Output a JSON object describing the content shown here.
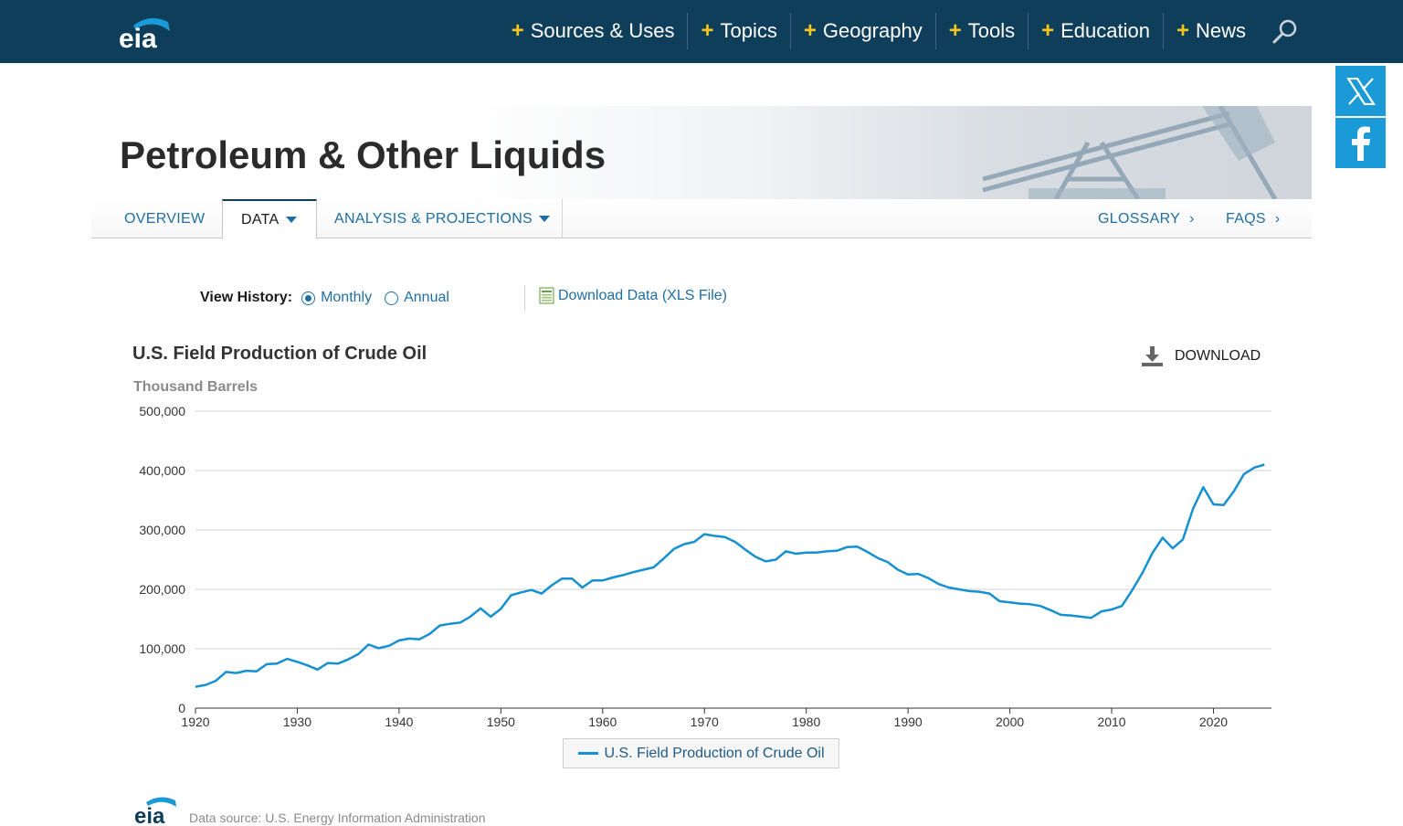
{
  "header": {
    "logo_text": "eia",
    "nav": [
      {
        "label": "Sources & Uses"
      },
      {
        "label": "Topics"
      },
      {
        "label": "Geography"
      },
      {
        "label": "Tools"
      },
      {
        "label": "Education"
      },
      {
        "label": "News"
      }
    ]
  },
  "banner": {
    "title": "Petroleum & Other Liquids"
  },
  "tabs": {
    "overview": "OVERVIEW",
    "data": "DATA",
    "analysis": "ANALYSIS & PROJECTIONS",
    "glossary": "GLOSSARY",
    "faqs": "FAQS",
    "chevron": "›"
  },
  "controls": {
    "view_history_label": "View History:",
    "monthly": "Monthly",
    "annual": "Annual",
    "selected": "Monthly",
    "download_xls": "Download Data (XLS File)"
  },
  "download_button": "DOWNLOAD",
  "footer": {
    "source": "Data source: U.S. Energy Information Administration"
  },
  "colors": {
    "header_bg": "#0f3e5b",
    "accent_plus": "#f7c71b",
    "link": "#1f6ea3",
    "series": "#1590d1",
    "social": "#1a9ad6"
  },
  "chart_data": {
    "type": "line",
    "title": "U.S. Field Production of Crude Oil",
    "ylabel": "Thousand Barrels",
    "xlabel": "",
    "xlim": [
      1920,
      2025.7
    ],
    "ylim": [
      0,
      500000
    ],
    "x_ticks": [
      "1920",
      "1930",
      "1940",
      "1950",
      "1960",
      "1970",
      "1980",
      "1990",
      "2000",
      "2010",
      "2020"
    ],
    "y_ticks": [
      "0",
      "100,000",
      "200,000",
      "300,000",
      "400,000",
      "500,000"
    ],
    "grid": true,
    "legend_position": "bottom-center",
    "series": [
      {
        "name": "U.S. Field Production of Crude Oil",
        "x": [
          1920,
          1921,
          1922,
          1923,
          1924,
          1925,
          1926,
          1927,
          1928,
          1929,
          1930,
          1931,
          1932,
          1933,
          1934,
          1935,
          1936,
          1937,
          1938,
          1939,
          1940,
          1941,
          1942,
          1943,
          1944,
          1945,
          1946,
          1947,
          1948,
          1949,
          1950,
          1951,
          1952,
          1953,
          1954,
          1955,
          1956,
          1957,
          1958,
          1959,
          1960,
          1961,
          1962,
          1963,
          1964,
          1965,
          1966,
          1967,
          1968,
          1969,
          1970,
          1971,
          1972,
          1973,
          1974,
          1975,
          1976,
          1977,
          1978,
          1979,
          1980,
          1981,
          1982,
          1983,
          1984,
          1985,
          1986,
          1987,
          1988,
          1989,
          1990,
          1991,
          1992,
          1993,
          1994,
          1995,
          1996,
          1997,
          1998,
          1999,
          2000,
          2001,
          2002,
          2003,
          2004,
          2005,
          2006,
          2007,
          2008,
          2009,
          2010,
          2011,
          2012,
          2013,
          2014,
          2015,
          2016,
          2017,
          2018,
          2019,
          2020,
          2021,
          2022,
          2023,
          2024,
          2025
        ],
        "values": [
          36000,
          39000,
          46000,
          61000,
          59000,
          63000,
          62000,
          74000,
          75000,
          83000,
          78000,
          72000,
          65000,
          76000,
          75000,
          82000,
          91000,
          107000,
          101000,
          105000,
          114000,
          117000,
          116000,
          125000,
          139000,
          142000,
          144000,
          154000,
          168000,
          154000,
          167000,
          190000,
          195000,
          199000,
          193000,
          207000,
          218000,
          218000,
          203000,
          215000,
          215000,
          220000,
          224000,
          229000,
          233000,
          237000,
          252000,
          268000,
          276000,
          280000,
          293000,
          290000,
          288000,
          280000,
          267000,
          255000,
          247000,
          250000,
          264000,
          260000,
          262000,
          262000,
          264000,
          265000,
          271000,
          272000,
          263000,
          253000,
          246000,
          233000,
          225000,
          226000,
          219000,
          209000,
          203000,
          200000,
          197000,
          196000,
          193000,
          180000,
          178000,
          176000,
          175000,
          172000,
          165000,
          157000,
          156000,
          154000,
          152000,
          163000,
          166000,
          172000,
          198000,
          227000,
          261000,
          287000,
          269000,
          284000,
          336000,
          372000,
          343000,
          342000,
          365000,
          394000,
          405000,
          410000
        ]
      }
    ]
  }
}
